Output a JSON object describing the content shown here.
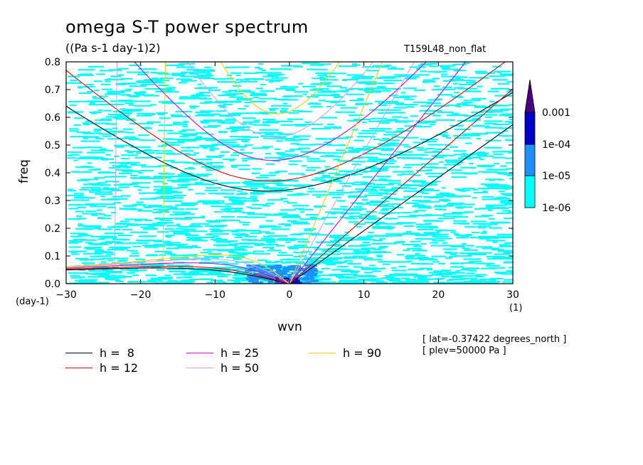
{
  "header": {
    "title": "omega S-T power spectrum",
    "units": "((Pa s-1 day-1)2)",
    "run_name": "T159L48_non_flat"
  },
  "chart_data": {
    "type": "heatmap",
    "title": "omega S-T power spectrum",
    "xlabel": "wvn",
    "ylabel": "freq",
    "x_unit": "(1)",
    "y_unit": "(day-1)",
    "xlim": [
      -30,
      30
    ],
    "ylim": [
      0,
      0.8
    ],
    "x_ticks": [
      -30,
      -20,
      -10,
      0,
      10,
      20,
      30
    ],
    "y_ticks": [
      0.0,
      0.1,
      0.2,
      0.3,
      0.4,
      0.5,
      0.6,
      0.7,
      0.8
    ],
    "colorbar": {
      "levels": [
        "1e-06",
        "1e-05",
        "1e-04",
        "0.001"
      ],
      "colors": [
        "#00ffff",
        "#1e90ff",
        "#0000c8",
        "#4b0082"
      ]
    },
    "dispersion_curves": [
      {
        "name": "h =  8",
        "h": 8,
        "color": "#000000"
      },
      {
        "name": "h = 12",
        "h": 12,
        "color": "#e00000"
      },
      {
        "name": "h = 25",
        "h": 25,
        "color": "#e000c0"
      },
      {
        "name": "h = 50",
        "h": 50,
        "color": "#d8a0e8"
      },
      {
        "name": "h = 90",
        "h": 90,
        "color": "#f0d000"
      }
    ],
    "annotations": [
      "[ lat=-0.37422 degrees_north ]",
      "[ plev=50000 Pa ]"
    ]
  }
}
